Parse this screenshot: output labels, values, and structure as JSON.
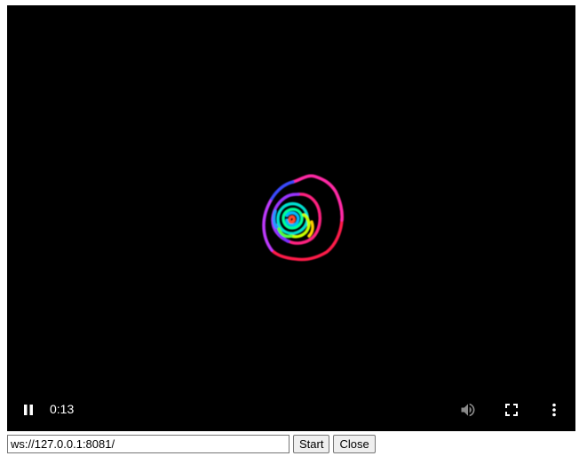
{
  "player": {
    "time": "0:13",
    "pause_icon": "pause-icon",
    "volume_icon": "volume-icon",
    "fullscreen_icon": "fullscreen-icon",
    "more_icon": "more-vert-icon"
  },
  "connection": {
    "url_value": "ws://127.0.0.1:8081/",
    "start_label": "Start",
    "close_label": "Close"
  },
  "colors": {
    "video_bg": "#000000",
    "controls_fg": "#ffffff",
    "volume_fg": "#8a8a8a"
  }
}
